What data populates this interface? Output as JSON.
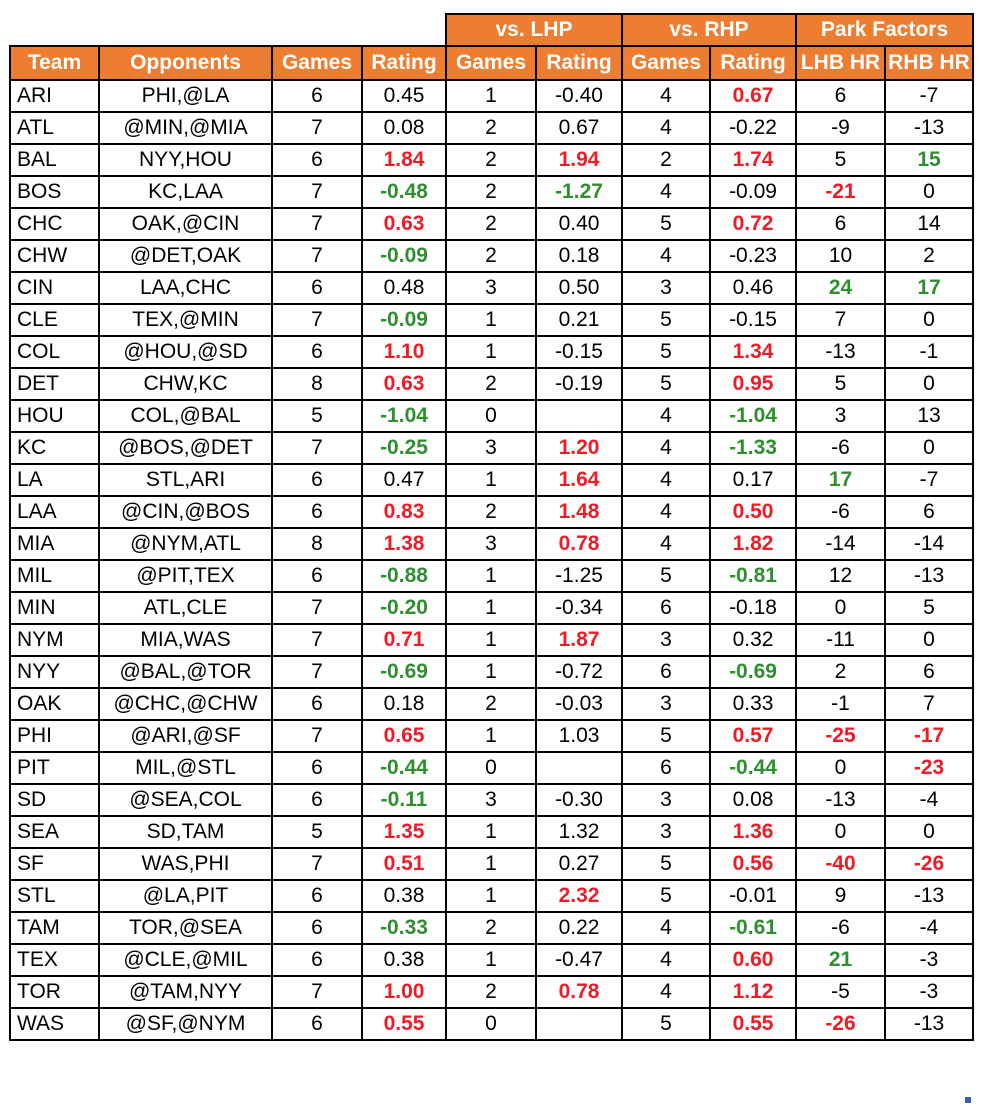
{
  "group_headers": {
    "lhp": "vs. LHP",
    "rhp": "vs. RHP",
    "park": "Park Factors"
  },
  "columns": [
    "Team",
    "Opponents",
    "Games",
    "Rating",
    "Games",
    "Rating",
    "Games",
    "Rating",
    "LHB HR",
    "RHB HR"
  ],
  "colors": {
    "header_bg": "#ED7D31",
    "positive": "#EE1C25",
    "negative": "#2F8F2F"
  },
  "rows": [
    [
      "ARI",
      "PHI,@LA",
      "6",
      "0.45",
      "1",
      "-0.40",
      "4",
      "0.67",
      "6",
      "-7"
    ],
    [
      "ATL",
      "@MIN,@MIA",
      "7",
      "0.08",
      "2",
      "0.67",
      "4",
      "-0.22",
      "-9",
      "-13"
    ],
    [
      "BAL",
      "NYY,HOU",
      "6",
      "1.84",
      "2",
      "1.94",
      "2",
      "1.74",
      "5",
      "15"
    ],
    [
      "BOS",
      "KC,LAA",
      "7",
      "-0.48",
      "2",
      "-1.27",
      "4",
      "-0.09",
      "-21",
      "0"
    ],
    [
      "CHC",
      "OAK,@CIN",
      "7",
      "0.63",
      "2",
      "0.40",
      "5",
      "0.72",
      "6",
      "14"
    ],
    [
      "CHW",
      "@DET,OAK",
      "7",
      "-0.09",
      "2",
      "0.18",
      "4",
      "-0.23",
      "10",
      "2"
    ],
    [
      "CIN",
      "LAA,CHC",
      "6",
      "0.48",
      "3",
      "0.50",
      "3",
      "0.46",
      "24",
      "17"
    ],
    [
      "CLE",
      "TEX,@MIN",
      "7",
      "-0.09",
      "1",
      "0.21",
      "5",
      "-0.15",
      "7",
      "0"
    ],
    [
      "COL",
      "@HOU,@SD",
      "6",
      "1.10",
      "1",
      "-0.15",
      "5",
      "1.34",
      "-13",
      "-1"
    ],
    [
      "DET",
      "CHW,KC",
      "8",
      "0.63",
      "2",
      "-0.19",
      "5",
      "0.95",
      "5",
      "0"
    ],
    [
      "HOU",
      "COL,@BAL",
      "5",
      "-1.04",
      "0",
      "",
      "4",
      "-1.04",
      "3",
      "13"
    ],
    [
      "KC",
      "@BOS,@DET",
      "7",
      "-0.25",
      "3",
      "1.20",
      "4",
      "-1.33",
      "-6",
      "0"
    ],
    [
      "LA",
      "STL,ARI",
      "6",
      "0.47",
      "1",
      "1.64",
      "4",
      "0.17",
      "17",
      "-7"
    ],
    [
      "LAA",
      "@CIN,@BOS",
      "6",
      "0.83",
      "2",
      "1.48",
      "4",
      "0.50",
      "-6",
      "6"
    ],
    [
      "MIA",
      "@NYM,ATL",
      "8",
      "1.38",
      "3",
      "0.78",
      "4",
      "1.82",
      "-14",
      "-14"
    ],
    [
      "MIL",
      "@PIT,TEX",
      "6",
      "-0.88",
      "1",
      "-1.25",
      "5",
      "-0.81",
      "12",
      "-13"
    ],
    [
      "MIN",
      "ATL,CLE",
      "7",
      "-0.20",
      "1",
      "-0.34",
      "6",
      "-0.18",
      "0",
      "5"
    ],
    [
      "NYM",
      "MIA,WAS",
      "7",
      "0.71",
      "1",
      "1.87",
      "3",
      "0.32",
      "-11",
      "0"
    ],
    [
      "NYY",
      "@BAL,@TOR",
      "7",
      "-0.69",
      "1",
      "-0.72",
      "6",
      "-0.69",
      "2",
      "6"
    ],
    [
      "OAK",
      "@CHC,@CHW",
      "6",
      "0.18",
      "2",
      "-0.03",
      "3",
      "0.33",
      "-1",
      "7"
    ],
    [
      "PHI",
      "@ARI,@SF",
      "7",
      "0.65",
      "1",
      "1.03",
      "5",
      "0.57",
      "-25",
      "-17"
    ],
    [
      "PIT",
      "MIL,@STL",
      "6",
      "-0.44",
      "0",
      "",
      "6",
      "-0.44",
      "0",
      "-23"
    ],
    [
      "SD",
      "@SEA,COL",
      "6",
      "-0.11",
      "3",
      "-0.30",
      "3",
      "0.08",
      "-13",
      "-4"
    ],
    [
      "SEA",
      "SD,TAM",
      "5",
      "1.35",
      "1",
      "1.32",
      "3",
      "1.36",
      "0",
      "0"
    ],
    [
      "SF",
      "WAS,PHI",
      "7",
      "0.51",
      "1",
      "0.27",
      "5",
      "0.56",
      "-40",
      "-26"
    ],
    [
      "STL",
      "@LA,PIT",
      "6",
      "0.38",
      "1",
      "2.32",
      "5",
      "-0.01",
      "9",
      "-13"
    ],
    [
      "TAM",
      "TOR,@SEA",
      "6",
      "-0.33",
      "2",
      "0.22",
      "4",
      "-0.61",
      "-6",
      "-4"
    ],
    [
      "TEX",
      "@CLE,@MIL",
      "6",
      "0.38",
      "1",
      "-0.47",
      "4",
      "0.60",
      "21",
      "-3"
    ],
    [
      "TOR",
      "@TAM,NYY",
      "7",
      "1.00",
      "2",
      "0.78",
      "4",
      "1.12",
      "-5",
      "-3"
    ],
    [
      "WAS",
      "@SF,@NYM",
      "6",
      "0.55",
      "0",
      "",
      "5",
      "0.55",
      "-26",
      "-13"
    ]
  ],
  "highlights": [
    [
      "",
      "",
      "",
      "",
      "",
      "",
      "",
      "r",
      "",
      ""
    ],
    [
      "",
      "",
      "",
      "",
      "",
      "",
      "",
      "",
      "",
      ""
    ],
    [
      "",
      "",
      "",
      "r",
      "",
      "r",
      "",
      "r",
      "",
      "g"
    ],
    [
      "",
      "",
      "",
      "g",
      "",
      "g",
      "",
      "",
      "r",
      ""
    ],
    [
      "",
      "",
      "",
      "r",
      "",
      "",
      "",
      "r",
      "",
      ""
    ],
    [
      "",
      "",
      "",
      "g",
      "",
      "",
      "",
      "",
      "",
      ""
    ],
    [
      "",
      "",
      "",
      "",
      "",
      "",
      "",
      "",
      "g",
      "g"
    ],
    [
      "",
      "",
      "",
      "g",
      "",
      "",
      "",
      "",
      "",
      ""
    ],
    [
      "",
      "",
      "",
      "r",
      "",
      "",
      "",
      "r",
      "",
      ""
    ],
    [
      "",
      "",
      "",
      "r",
      "",
      "",
      "",
      "r",
      "",
      ""
    ],
    [
      "",
      "",
      "",
      "g",
      "",
      "",
      "",
      "g",
      "",
      ""
    ],
    [
      "",
      "",
      "",
      "g",
      "",
      "r",
      "",
      "g",
      "",
      ""
    ],
    [
      "",
      "",
      "",
      "",
      "",
      "r",
      "",
      "",
      "g",
      ""
    ],
    [
      "",
      "",
      "",
      "r",
      "",
      "r",
      "",
      "r",
      "",
      ""
    ],
    [
      "",
      "",
      "",
      "r",
      "",
      "r",
      "",
      "r",
      "",
      ""
    ],
    [
      "",
      "",
      "",
      "g",
      "",
      "",
      "",
      "g",
      "",
      ""
    ],
    [
      "",
      "",
      "",
      "g",
      "",
      "",
      "",
      "",
      "",
      ""
    ],
    [
      "",
      "",
      "",
      "r",
      "",
      "r",
      "",
      "",
      "",
      ""
    ],
    [
      "",
      "",
      "",
      "g",
      "",
      "",
      "",
      "g",
      "",
      ""
    ],
    [
      "",
      "",
      "",
      "",
      "",
      "",
      "",
      "",
      "",
      ""
    ],
    [
      "",
      "",
      "",
      "r",
      "",
      "",
      "",
      "r",
      "r",
      "r"
    ],
    [
      "",
      "",
      "",
      "g",
      "",
      "",
      "",
      "g",
      "",
      "r"
    ],
    [
      "",
      "",
      "",
      "g",
      "",
      "",
      "",
      "",
      "",
      ""
    ],
    [
      "",
      "",
      "",
      "r",
      "",
      "",
      "",
      "r",
      "",
      ""
    ],
    [
      "",
      "",
      "",
      "r",
      "",
      "",
      "",
      "r",
      "r",
      "r"
    ],
    [
      "",
      "",
      "",
      "",
      "",
      "r",
      "",
      "",
      "",
      ""
    ],
    [
      "",
      "",
      "",
      "g",
      "",
      "",
      "",
      "g",
      "",
      ""
    ],
    [
      "",
      "",
      "",
      "",
      "",
      "",
      "",
      "r",
      "g",
      ""
    ],
    [
      "",
      "",
      "",
      "r",
      "",
      "r",
      "",
      "r",
      "",
      ""
    ],
    [
      "",
      "",
      "",
      "r",
      "",
      "",
      "",
      "r",
      "r",
      ""
    ]
  ]
}
